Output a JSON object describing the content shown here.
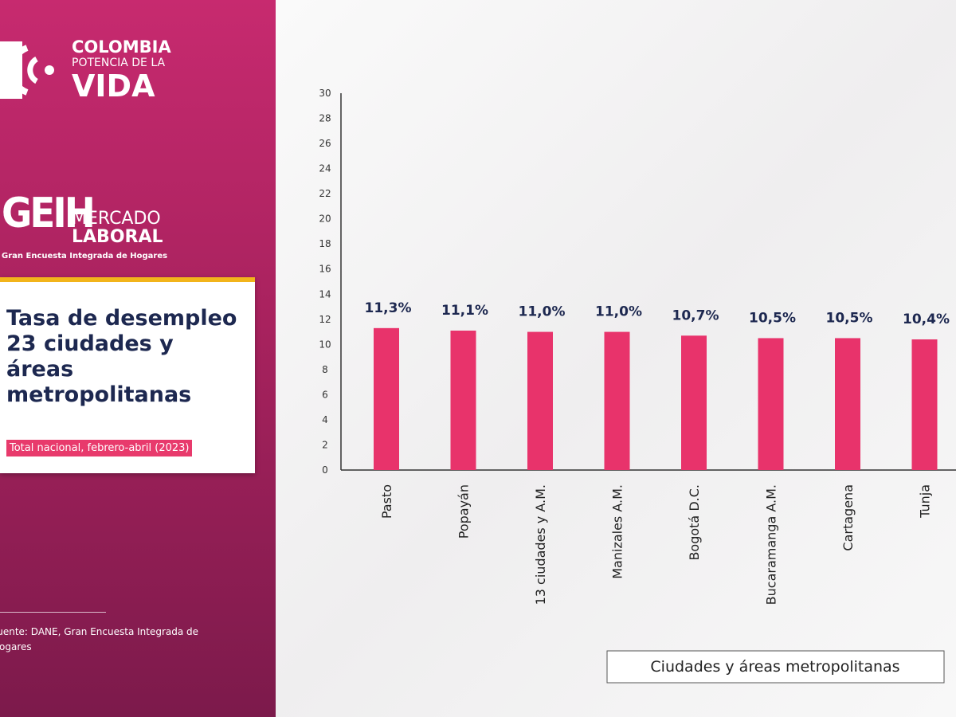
{
  "branding": {
    "line1": "COLOMBIA",
    "line2": "POTENCIA DE LA",
    "line3": "VIDA",
    "geih": "GEIH",
    "mercado": "MERCADO",
    "laboral": "LABORAL",
    "geih_full": "Gran Encuesta Integrada de Hogares"
  },
  "chart_data": {
    "type": "bar",
    "title": "Tasa de desempleo 23 ciudades y áreas metropolitanas",
    "subtitle": "Total nacional, febrero-abril (2023)",
    "source": "Fuente: DANE, Gran Encuesta Integrada de Hogares",
    "x_label": "Ciudades y áreas metropolitanas",
    "categories": [
      "Pasto",
      "Popayán",
      "13 ciudades y A.M.",
      "Manizales A.M.",
      "Bogotá D.C.",
      "Bucaramanga A.M.",
      "Cartagena",
      "Tunja"
    ],
    "values": [
      11.3,
      11.1,
      11.0,
      11.0,
      10.7,
      10.5,
      10.5,
      10.4
    ],
    "value_labels": [
      "11,3%",
      "11,1%",
      "11,0%",
      "11,0%",
      "10,7%",
      "10,5%",
      "10,5%",
      "10,4%"
    ],
    "color": "#e8336b",
    "ylim": [
      0,
      30
    ],
    "yticks": [
      0,
      2,
      4,
      6,
      8,
      10,
      12,
      14,
      16,
      18,
      20,
      22,
      24,
      26,
      28,
      30
    ],
    "grid": false
  }
}
